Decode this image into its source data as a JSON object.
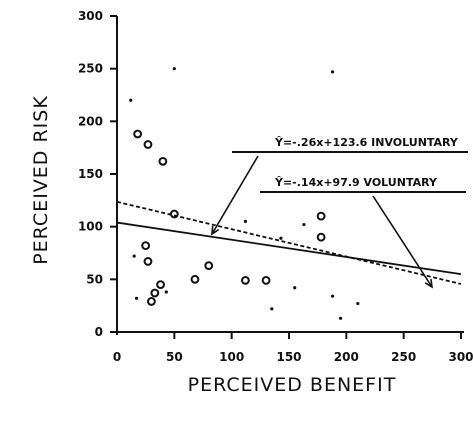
{
  "chart_data": {
    "type": "scatter",
    "title": "",
    "xlabel": "PERCEIVED BENEFIT",
    "ylabel": "PERCEIVED RISK",
    "xlim": [
      0,
      300
    ],
    "ylim": [
      0,
      300
    ],
    "xticks": [
      0,
      50,
      100,
      150,
      200,
      250,
      300
    ],
    "yticks": [
      0,
      50,
      100,
      150,
      200,
      250,
      300
    ],
    "grid": false,
    "series": [
      {
        "marker": "open-circle",
        "points": [
          [
            18,
            188
          ],
          [
            27,
            178
          ],
          [
            40,
            162
          ],
          [
            50,
            112
          ],
          [
            25,
            82
          ],
          [
            27,
            67
          ],
          [
            30,
            29
          ],
          [
            33,
            37
          ],
          [
            38,
            45
          ],
          [
            68,
            50
          ],
          [
            80,
            63
          ],
          [
            112,
            49
          ],
          [
            130,
            49
          ],
          [
            178,
            110
          ],
          [
            178,
            90
          ]
        ]
      },
      {
        "marker": "filled-dot",
        "points": [
          [
            12,
            220
          ],
          [
            15,
            72
          ],
          [
            17,
            32
          ],
          [
            43,
            38
          ],
          [
            50,
            250
          ],
          [
            112,
            105
          ],
          [
            135,
            22
          ],
          [
            143,
            89
          ],
          [
            155,
            42
          ],
          [
            163,
            102
          ],
          [
            188,
            247
          ],
          [
            188,
            34
          ],
          [
            195,
            13
          ],
          [
            210,
            27
          ]
        ]
      }
    ],
    "regression_lines": [
      {
        "label": "Ŷ=-.26x+123.6 INVOLUNTARY",
        "slope": -0.26,
        "intercept": 123.6,
        "style": "dashed"
      },
      {
        "label": "Ŷ=-.14x+97.9 VOLUNTARY",
        "slope": -0.14,
        "intercept": 97.9,
        "style": "solid"
      }
    ]
  }
}
